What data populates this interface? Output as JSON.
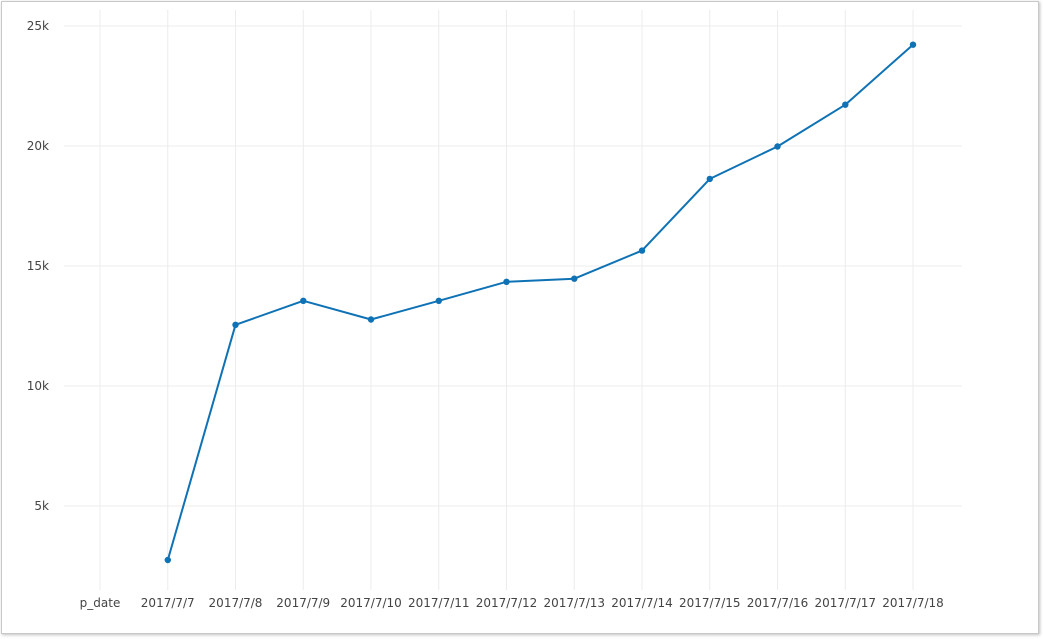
{
  "colors": {
    "series": "#0e72b5",
    "grid": "#ececec",
    "tick_text": "#444444"
  },
  "chart_data": {
    "type": "line",
    "title": "",
    "xlabel": "",
    "ylabel": "",
    "categories": [
      "p_date",
      "2017/7/7",
      "2017/7/8",
      "2017/7/9",
      "2017/7/10",
      "2017/7/11",
      "2017/7/12",
      "2017/7/13",
      "2017/7/14",
      "2017/7/15",
      "2017/7/16",
      "2017/7/17",
      "2017/7/18"
    ],
    "series": [
      {
        "values": [
          null,
          2750,
          12550,
          13550,
          12770,
          13550,
          14340,
          14470,
          15640,
          18630,
          19980,
          21720,
          24220
        ]
      }
    ],
    "ylim": [
      2000,
      25000
    ],
    "y_ticks": [
      5000,
      10000,
      15000,
      20000,
      25000
    ],
    "y_tick_labels": [
      "5k",
      "10k",
      "15k",
      "20k",
      "25k"
    ],
    "grid": true,
    "legend": "none",
    "markers": true
  }
}
